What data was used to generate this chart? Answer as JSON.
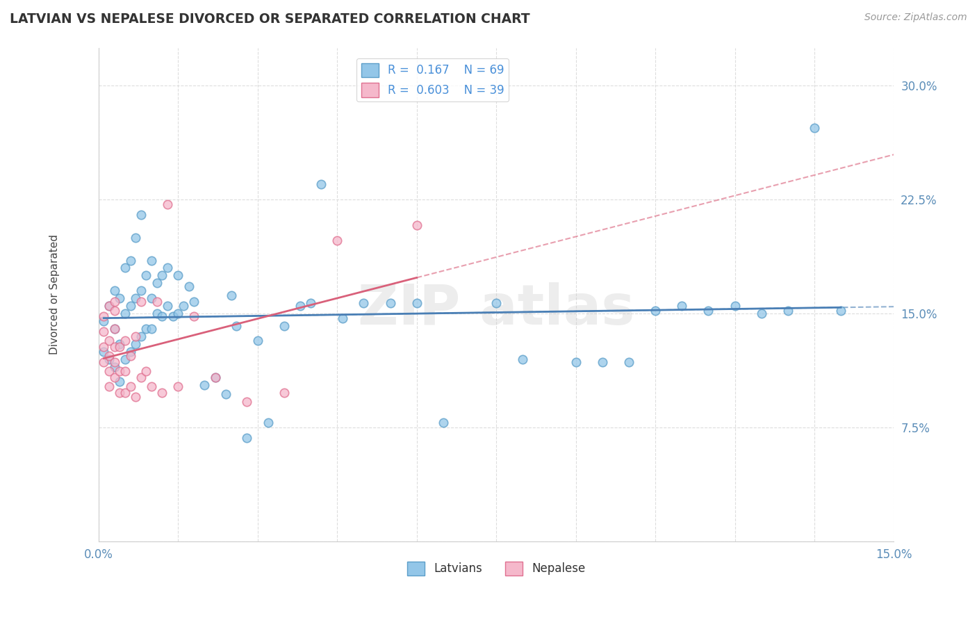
{
  "title": "LATVIAN VS NEPALESE DIVORCED OR SEPARATED CORRELATION CHART",
  "source_text": "Source: ZipAtlas.com",
  "ylabel": "Divorced or Separated",
  "xlim": [
    0.0,
    0.15
  ],
  "ylim": [
    0.0,
    0.325
  ],
  "xticks": [
    0.0,
    0.015,
    0.03,
    0.045,
    0.06,
    0.075,
    0.09,
    0.105,
    0.12,
    0.135,
    0.15
  ],
  "xticklabels": [
    "0.0%",
    "",
    "",
    "",
    "",
    "",
    "",
    "",
    "",
    "",
    "15.0%"
  ],
  "ytick_positions": [
    0.0,
    0.075,
    0.15,
    0.225,
    0.3
  ],
  "yticklabels": [
    "",
    "7.5%",
    "15.0%",
    "22.5%",
    "30.0%"
  ],
  "latvian_color": "#93C6E8",
  "latvian_edge_color": "#5B9EC9",
  "nepalese_color": "#F5B8CB",
  "nepalese_edge_color": "#E07090",
  "latvian_line_color": "#4A7FB5",
  "nepalese_line_color": "#D9607A",
  "latvian_R": 0.167,
  "latvian_N": 69,
  "nepalese_R": 0.603,
  "nepalese_N": 39,
  "grid_color": "#DDDDDD",
  "latvian_scatter_x": [
    0.001,
    0.001,
    0.002,
    0.002,
    0.003,
    0.003,
    0.003,
    0.004,
    0.004,
    0.004,
    0.005,
    0.005,
    0.005,
    0.006,
    0.006,
    0.006,
    0.007,
    0.007,
    0.007,
    0.008,
    0.008,
    0.008,
    0.009,
    0.009,
    0.01,
    0.01,
    0.01,
    0.011,
    0.011,
    0.012,
    0.012,
    0.013,
    0.013,
    0.014,
    0.015,
    0.015,
    0.016,
    0.017,
    0.018,
    0.02,
    0.022,
    0.024,
    0.025,
    0.026,
    0.028,
    0.03,
    0.032,
    0.035,
    0.038,
    0.04,
    0.042,
    0.046,
    0.05,
    0.055,
    0.06,
    0.065,
    0.075,
    0.08,
    0.09,
    0.095,
    0.1,
    0.105,
    0.11,
    0.115,
    0.12,
    0.125,
    0.13,
    0.135,
    0.14
  ],
  "latvian_scatter_y": [
    0.125,
    0.145,
    0.12,
    0.155,
    0.115,
    0.14,
    0.165,
    0.105,
    0.13,
    0.16,
    0.12,
    0.15,
    0.18,
    0.125,
    0.155,
    0.185,
    0.13,
    0.16,
    0.2,
    0.135,
    0.165,
    0.215,
    0.14,
    0.175,
    0.14,
    0.16,
    0.185,
    0.15,
    0.17,
    0.148,
    0.175,
    0.155,
    0.18,
    0.148,
    0.15,
    0.175,
    0.155,
    0.168,
    0.158,
    0.103,
    0.108,
    0.097,
    0.162,
    0.142,
    0.068,
    0.132,
    0.078,
    0.142,
    0.155,
    0.157,
    0.235,
    0.147,
    0.157,
    0.157,
    0.157,
    0.078,
    0.157,
    0.12,
    0.118,
    0.118,
    0.118,
    0.152,
    0.155,
    0.152,
    0.155,
    0.15,
    0.152,
    0.272,
    0.152
  ],
  "nepalese_scatter_x": [
    0.001,
    0.001,
    0.001,
    0.001,
    0.002,
    0.002,
    0.002,
    0.002,
    0.002,
    0.003,
    0.003,
    0.003,
    0.003,
    0.003,
    0.003,
    0.004,
    0.004,
    0.004,
    0.005,
    0.005,
    0.005,
    0.006,
    0.006,
    0.007,
    0.007,
    0.008,
    0.008,
    0.009,
    0.01,
    0.011,
    0.012,
    0.013,
    0.015,
    0.018,
    0.022,
    0.028,
    0.035,
    0.045,
    0.06
  ],
  "nepalese_scatter_y": [
    0.118,
    0.128,
    0.138,
    0.148,
    0.102,
    0.112,
    0.122,
    0.132,
    0.155,
    0.108,
    0.118,
    0.128,
    0.14,
    0.152,
    0.158,
    0.098,
    0.112,
    0.128,
    0.098,
    0.112,
    0.132,
    0.102,
    0.122,
    0.095,
    0.135,
    0.108,
    0.158,
    0.112,
    0.102,
    0.158,
    0.098,
    0.222,
    0.102,
    0.148,
    0.108,
    0.092,
    0.098,
    0.198,
    0.208
  ]
}
